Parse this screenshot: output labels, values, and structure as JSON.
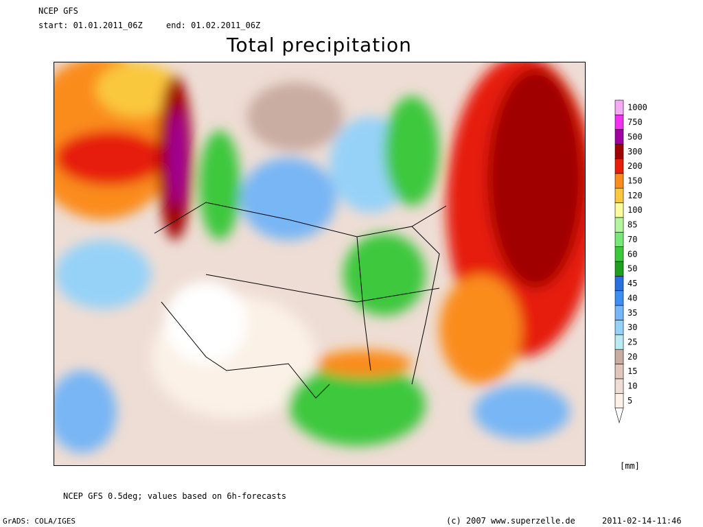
{
  "header": {
    "model": "NCEP GFS",
    "start": "start: 01.01.2011_06Z",
    "end": "end: 01.02.2011_06Z",
    "title": "Total precipitation"
  },
  "legend": {
    "unit": "[mm]",
    "levels": [
      5,
      10,
      15,
      20,
      25,
      30,
      35,
      40,
      45,
      50,
      60,
      70,
      85,
      100,
      120,
      150,
      200,
      300,
      500,
      750,
      1000
    ],
    "colors": [
      "#fbf1e6",
      "#eeddd4",
      "#dfc7bd",
      "#c9aca2",
      "#b9ebf0",
      "#96d2f8",
      "#78b6f5",
      "#3c8ff0",
      "#2a6fe0",
      "#1ea01e",
      "#3cc83c",
      "#78e678",
      "#b4f5a0",
      "#fafaa0",
      "#fac83c",
      "#fa8c1e",
      "#e61e0a",
      "#a00000",
      "#a000a0",
      "#f032f0",
      "#f5aaf5"
    ]
  },
  "footer": {
    "note": "NCEP GFS 0.5deg; values based on 6h-forecasts",
    "software": "GrADS: COLA/IGES",
    "copyright": "(c) 2007 www.superzelle.de",
    "timestamp": "2011-02-14-11:46"
  }
}
